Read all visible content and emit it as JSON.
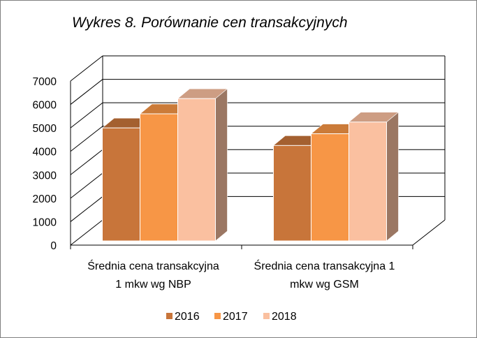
{
  "colors": {
    "2016": "#c8753a",
    "2017": "#f79646",
    "2018": "#fac0a0",
    "grid": "#000000",
    "back_wall": "#ffffff"
  },
  "chart_data": {
    "type": "bar",
    "title": "Wykres 8. Porównanie cen transakcyjnych",
    "categories": [
      [
        "Średnia cena transakcyjna",
        "1 mkw wg NBP"
      ],
      [
        "Średnia cena transakcyjna 1",
        "mkw wg GSM"
      ]
    ],
    "series": [
      {
        "name": "2016",
        "values": [
          5000,
          4250
        ]
      },
      {
        "name": "2017",
        "values": [
          5600,
          4750
        ]
      },
      {
        "name": "2018",
        "values": [
          6250,
          5250
        ]
      }
    ],
    "ylim": [
      0,
      7000
    ],
    "yticks": [
      "0",
      "1000",
      "2000",
      "3000",
      "4000",
      "5000",
      "6000",
      "7000"
    ],
    "grid": true,
    "legend_position": "bottom",
    "style": "3d-clustered-column"
  }
}
